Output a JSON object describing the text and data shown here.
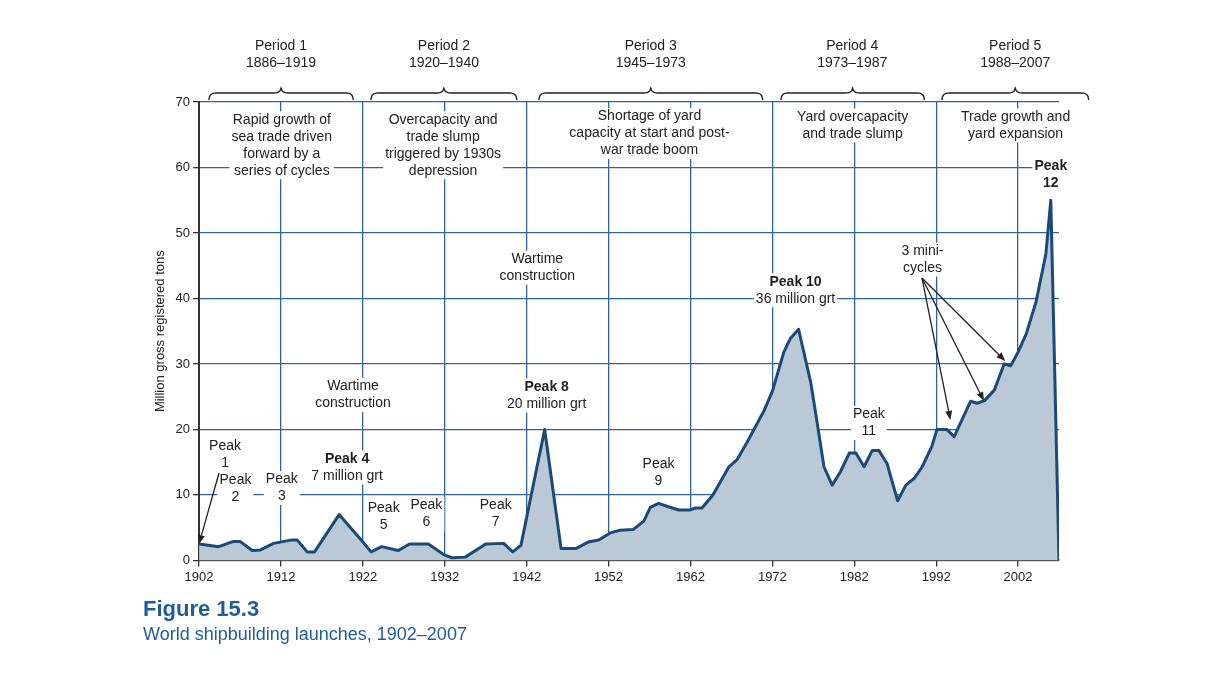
{
  "chart_data": {
    "type": "area",
    "title": "Figure 15.3",
    "subtitle": "World shipbuilding launches, 1902–2007",
    "ylabel": "Million gross registered tons",
    "x": [
      1902,
      1904.4,
      1906.2,
      1907,
      1908.5,
      1909.5,
      1911.1,
      1913.2,
      1914,
      1915.2,
      1916.1,
      1919.1,
      1921.8,
      1923,
      1924.3,
      1926.3,
      1927.7,
      1930,
      1932,
      1932.9,
      1934.5,
      1937,
      1939.2,
      1940.3,
      1941.3,
      1944.2,
      1946.2,
      1948,
      1949.5,
      1950.8,
      1952.2,
      1953.4,
      1955,
      1956.3,
      1957.1,
      1958.1,
      1959.3,
      1960.6,
      1962,
      1962.6,
      1963.4,
      1964.7,
      1966.7,
      1967.7,
      1968.9,
      1971,
      1972,
      1973.4,
      1974.2,
      1975.2,
      1976.7,
      1977.5,
      1978.3,
      1979.3,
      1980.3,
      1981.4,
      1982.2,
      1983.2,
      1984.2,
      1985,
      1986,
      1987.3,
      1988.3,
      1989.3,
      1990.3,
      1991.5,
      1992.1,
      1993.3,
      1994.2,
      1996.2,
      1997,
      1997.9,
      1999.1,
      2000.3,
      2001.1,
      2002,
      2003,
      2004.2,
      2005.4,
      2006,
      2007
    ],
    "series": [
      {
        "color": "#1b4a7a",
        "values": [
          2.5,
          2.1,
          2.9,
          2.9,
          1.5,
          1.6,
          2.6,
          3.1,
          3.1,
          1.3,
          1.3,
          7,
          3.1,
          1.3,
          2.1,
          1.5,
          2.5,
          2.5,
          0.8,
          0.4,
          0.5,
          2.5,
          2.6,
          1.3,
          2.3,
          20,
          1.8,
          1.8,
          2.8,
          3.1,
          4.2,
          4.6,
          4.7,
          6,
          8.1,
          8.7,
          8.2,
          7.7,
          7.7,
          8,
          8,
          9.9,
          14.3,
          15.4,
          18,
          22.9,
          25.8,
          31.8,
          33.9,
          35.3,
          27.1,
          20.8,
          14.3,
          11.5,
          13.5,
          16.4,
          16.4,
          14.3,
          16.8,
          16.8,
          14.8,
          9.1,
          11.5,
          12.5,
          14.3,
          17.5,
          20,
          20,
          18.9,
          24.3,
          24,
          24.4,
          26,
          30,
          29.7,
          31.8,
          34.6,
          39.5,
          46.8,
          55,
          0
        ]
      }
    ],
    "xlim": [
      1902,
      2007
    ],
    "xticks": [
      1902,
      1912,
      1922,
      1932,
      1942,
      1952,
      1962,
      1972,
      1982,
      1992,
      2002
    ],
    "ylim": [
      0,
      70
    ],
    "yticks": [
      0,
      10,
      20,
      30,
      40,
      50,
      60,
      70
    ],
    "grid": true,
    "annotations": [
      "Period 1\n1886–1919",
      "Period 2\n1920–1940",
      "Period 3\n1945–1973",
      "Period 4\n1973–1987",
      "Period 5\n1988–2007",
      "Rapid growth of\nsea trade driven\nforward by a\nseries of cycles",
      "Overcapacity and\ntrade slump\ntriggered by 1930s\ndepression",
      "Shortage of yard\ncapacity at start and post-\nwar trade boom",
      "Yard overcapacity\nand trade slump",
      "Trade growth and\nyard expansion",
      "Wartime\nconstruction",
      "Wartime\nconstruction",
      {
        "text": "3 mini-\ncycles",
        "x": 1997.9,
        "y": 24.4
      },
      {
        "text": "Peak\n1",
        "x": 1902,
        "y": 2.5
      },
      {
        "text": "Peak\n2",
        "x": 1906.2,
        "y": 2.9
      },
      {
        "text": "Peak\n3",
        "x": 1913.2,
        "y": 3.1
      },
      {
        "text": "Peak 4\n7 million grt",
        "x": 1919.1,
        "y": 7
      },
      {
        "text": "Peak\n5",
        "x": 1924.3,
        "y": 2.1
      },
      {
        "text": "Peak\n6",
        "x": 1930,
        "y": 2.5
      },
      {
        "text": "Peak\n7",
        "x": 1939.2,
        "y": 2.6
      },
      {
        "text": "Peak 8\n20 million grt",
        "x": 1944.2,
        "y": 20
      },
      {
        "text": "Peak\n9",
        "x": 1958.1,
        "y": 8.7
      },
      {
        "text": "Peak 10\n36 million grt",
        "x": 1975.2,
        "y": 35.3
      },
      {
        "text": "Peak\n11",
        "x": 1982.2,
        "y": 16.4
      },
      {
        "text": "Peak\n12",
        "x": 2006,
        "y": 55
      }
    ]
  }
}
